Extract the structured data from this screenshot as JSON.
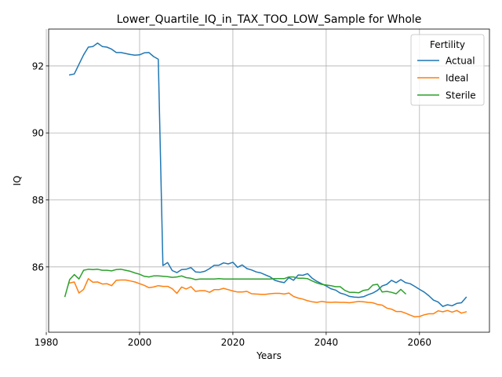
{
  "chart_data": {
    "type": "line",
    "title": "Lower_Quartile_IQ_in_TAX_TOO_LOW_Sample for Whole",
    "xlabel": "Years",
    "ylabel": "IQ",
    "xlim": [
      1980.5,
      2075
    ],
    "ylim": [
      84.05,
      93.1
    ],
    "xticks": [
      1980,
      2000,
      2020,
      2040,
      2060
    ],
    "yticks": [
      86,
      88,
      90,
      92
    ],
    "grid": true,
    "legend": {
      "title": "Fertility",
      "placement": "top-right"
    },
    "series": [
      {
        "name": "Actual",
        "color": "#1f77b4",
        "x": [
          1985,
          1986,
          1987,
          1988,
          1989,
          1990,
          1991,
          1992,
          1993,
          1994,
          1995,
          1996,
          1997,
          1998,
          1999,
          2000,
          2001,
          2002,
          2003,
          2004,
          2005,
          2006,
          2007,
          2008,
          2009,
          2010,
          2011,
          2012,
          2013,
          2014,
          2015,
          2016,
          2017,
          2018,
          2019,
          2020,
          2021,
          2022,
          2023,
          2024,
          2025,
          2026,
          2027,
          2028,
          2029,
          2030,
          2031,
          2032,
          2033,
          2034,
          2035,
          2036,
          2037,
          2038,
          2039,
          2040,
          2041,
          2042,
          2043,
          2044,
          2045,
          2046,
          2047,
          2048,
          2049,
          2050,
          2051,
          2052,
          2053,
          2054,
          2055,
          2056,
          2057,
          2058,
          2059,
          2060,
          2061,
          2062,
          2063,
          2064,
          2065,
          2066,
          2067,
          2068,
          2069,
          2070
        ],
        "y": [
          91.73,
          91.76,
          92.05,
          92.33,
          92.56,
          92.58,
          92.68,
          92.58,
          92.56,
          92.5,
          92.4,
          92.4,
          92.37,
          92.34,
          92.32,
          92.33,
          92.39,
          92.4,
          92.28,
          92.2,
          86.04,
          86.13,
          85.89,
          85.83,
          85.92,
          85.93,
          85.98,
          85.85,
          85.84,
          85.87,
          85.95,
          86.05,
          86.05,
          86.12,
          86.09,
          86.14,
          85.99,
          86.06,
          85.95,
          85.91,
          85.85,
          85.82,
          85.76,
          85.7,
          85.6,
          85.56,
          85.53,
          85.68,
          85.6,
          85.76,
          85.75,
          85.8,
          85.66,
          85.57,
          85.5,
          85.43,
          85.35,
          85.31,
          85.22,
          85.18,
          85.12,
          85.1,
          85.09,
          85.11,
          85.17,
          85.22,
          85.3,
          85.43,
          85.48,
          85.6,
          85.53,
          85.62,
          85.53,
          85.5,
          85.42,
          85.33,
          85.25,
          85.14,
          85.01,
          84.95,
          84.82,
          84.87,
          84.84,
          84.91,
          84.93,
          85.09
        ]
      },
      {
        "name": "Ideal",
        "color": "#ff7f0e",
        "x": [
          1985,
          1986,
          1987,
          1988,
          1989,
          1990,
          1991,
          1992,
          1993,
          1994,
          1995,
          1996,
          1997,
          1998,
          1999,
          2000,
          2001,
          2002,
          2003,
          2004,
          2005,
          2006,
          2007,
          2008,
          2009,
          2010,
          2011,
          2012,
          2013,
          2014,
          2015,
          2016,
          2017,
          2018,
          2019,
          2020,
          2021,
          2022,
          2023,
          2024,
          2025,
          2026,
          2027,
          2028,
          2029,
          2030,
          2031,
          2032,
          2033,
          2034,
          2035,
          2036,
          2037,
          2038,
          2039,
          2040,
          2041,
          2042,
          2043,
          2044,
          2045,
          2046,
          2047,
          2048,
          2049,
          2050,
          2051,
          2052,
          2053,
          2054,
          2055,
          2056,
          2057,
          2058,
          2059,
          2060,
          2061,
          2062,
          2063,
          2064,
          2065,
          2066,
          2067,
          2068,
          2069,
          2070
        ],
        "y": [
          85.52,
          85.55,
          85.22,
          85.33,
          85.65,
          85.54,
          85.55,
          85.49,
          85.5,
          85.44,
          85.6,
          85.61,
          85.61,
          85.58,
          85.55,
          85.5,
          85.45,
          85.38,
          85.4,
          85.44,
          85.42,
          85.42,
          85.35,
          85.21,
          85.4,
          85.34,
          85.41,
          85.27,
          85.29,
          85.29,
          85.24,
          85.32,
          85.32,
          85.36,
          85.32,
          85.28,
          85.25,
          85.25,
          85.27,
          85.2,
          85.19,
          85.18,
          85.18,
          85.2,
          85.21,
          85.21,
          85.19,
          85.22,
          85.12,
          85.07,
          85.04,
          84.99,
          84.96,
          84.94,
          84.97,
          84.95,
          84.94,
          84.95,
          84.94,
          84.94,
          84.93,
          84.95,
          84.97,
          84.96,
          84.94,
          84.93,
          84.88,
          84.86,
          84.77,
          84.74,
          84.67,
          84.67,
          84.62,
          84.56,
          84.51,
          84.52,
          84.57,
          84.6,
          84.6,
          84.69,
          84.66,
          84.7,
          84.65,
          84.7,
          84.62,
          84.66
        ]
      },
      {
        "name": "Sterile",
        "color": "#2ca02c",
        "x": [
          1984,
          1985,
          1986,
          1987,
          1988,
          1989,
          1990,
          1991,
          1992,
          1993,
          1994,
          1995,
          1996,
          1997,
          1998,
          1999,
          2000,
          2001,
          2002,
          2003,
          2004,
          2005,
          2006,
          2007,
          2008,
          2009,
          2010,
          2011,
          2012,
          2013,
          2014,
          2015,
          2016,
          2017,
          2018,
          2019,
          2020,
          2021,
          2022,
          2023,
          2024,
          2025,
          2026,
          2027,
          2028,
          2029,
          2030,
          2031,
          2032,
          2033,
          2034,
          2035,
          2036,
          2037,
          2038,
          2039,
          2040,
          2041,
          2042,
          2043,
          2044,
          2045,
          2046,
          2047,
          2048,
          2049,
          2050,
          2051,
          2052,
          2053,
          2054,
          2055,
          2056,
          2057
        ],
        "y": [
          85.12,
          85.62,
          85.77,
          85.64,
          85.9,
          85.93,
          85.92,
          85.93,
          85.9,
          85.9,
          85.88,
          85.92,
          85.93,
          85.9,
          85.87,
          85.82,
          85.78,
          85.72,
          85.7,
          85.73,
          85.73,
          85.72,
          85.71,
          85.69,
          85.7,
          85.73,
          85.68,
          85.66,
          85.62,
          85.64,
          85.64,
          85.64,
          85.64,
          85.65,
          85.64,
          85.64,
          85.64,
          85.64,
          85.64,
          85.64,
          85.64,
          85.64,
          85.64,
          85.64,
          85.64,
          85.65,
          85.65,
          85.65,
          85.7,
          85.7,
          85.66,
          85.66,
          85.65,
          85.58,
          85.52,
          85.48,
          85.46,
          85.44,
          85.41,
          85.41,
          85.3,
          85.24,
          85.24,
          85.23,
          85.3,
          85.32,
          85.46,
          85.48,
          85.25,
          85.27,
          85.24,
          85.2,
          85.33,
          85.2
        ]
      }
    ]
  }
}
